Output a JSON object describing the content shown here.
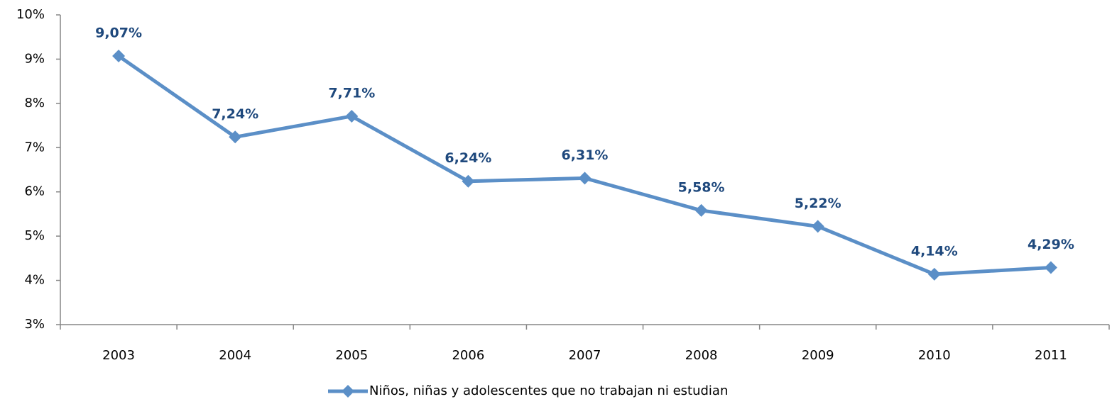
{
  "chart_data": {
    "type": "line",
    "categories": [
      "2003",
      "2004",
      "2005",
      "2006",
      "2007",
      "2008",
      "2009",
      "2010",
      "2011"
    ],
    "series": [
      {
        "name": "Niños, niñas y adolescentes que no trabajan ni estudian",
        "color": "#5b8fc7",
        "values": [
          9.07,
          7.24,
          7.71,
          6.24,
          6.31,
          5.58,
          5.22,
          4.14,
          4.29
        ],
        "value_labels": [
          "9,07%",
          "7,24%",
          "7,71%",
          "6,24%",
          "6,31%",
          "5,58%",
          "5,22%",
          "4,14%",
          "4,29%"
        ]
      }
    ],
    "ylim": [
      3,
      10
    ],
    "yticks": [
      {
        "value": 3,
        "label": "3%"
      },
      {
        "value": 4,
        "label": "4%"
      },
      {
        "value": 5,
        "label": "5%"
      },
      {
        "value": 6,
        "label": "6%"
      },
      {
        "value": 7,
        "label": "7%"
      },
      {
        "value": 8,
        "label": "8%"
      },
      {
        "value": 9,
        "label": "9%"
      },
      {
        "value": 10,
        "label": "10%"
      }
    ],
    "grid": false,
    "legend": "bottom"
  }
}
